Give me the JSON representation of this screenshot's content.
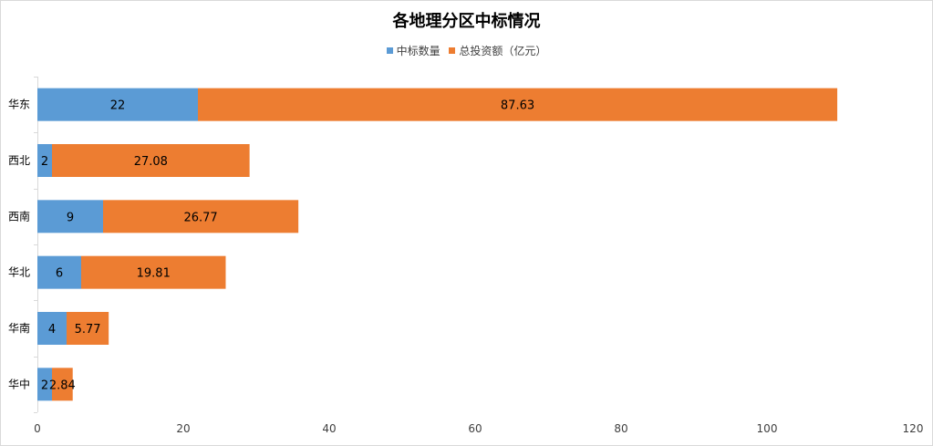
{
  "chart_data": {
    "type": "bar",
    "orientation": "horizontal",
    "stacked": true,
    "title": "各地理分区中标情况",
    "categories": [
      "华东",
      "西北",
      "西南",
      "华北",
      "华南",
      "华中"
    ],
    "series": [
      {
        "name": "中标数量",
        "color": "#5b9bd5",
        "values": [
          22,
          2,
          9,
          6,
          4,
          2
        ]
      },
      {
        "name": "总投资额（亿元）",
        "color": "#ed7d31",
        "values": [
          87.63,
          27.08,
          26.77,
          19.81,
          5.77,
          2.84
        ]
      }
    ],
    "xlim": [
      0,
      120
    ],
    "xticks": [
      "0",
      "20",
      "40",
      "60",
      "80",
      "100",
      "120"
    ],
    "grid": false,
    "legend_position": "top",
    "data_labels": true
  }
}
